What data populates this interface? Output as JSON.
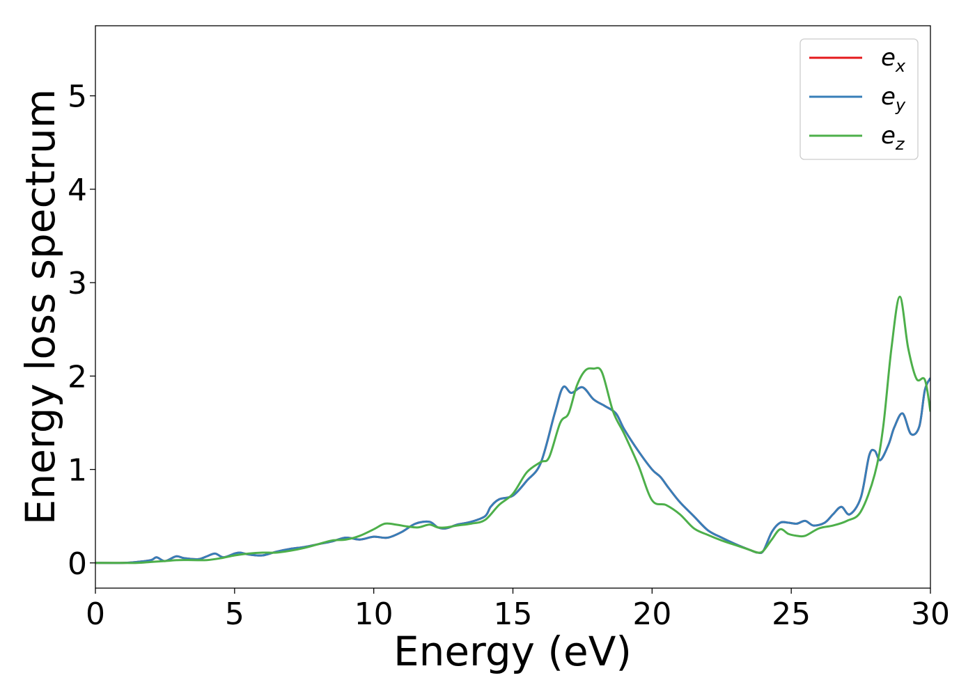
{
  "chart_data": {
    "type": "line",
    "xlabel": "Energy (eV)",
    "ylabel": "Energy loss spectrum",
    "xlim": [
      0,
      30
    ],
    "ylim": [
      -0.27,
      5.75
    ],
    "xticks": [
      0,
      5,
      10,
      15,
      20,
      25,
      30
    ],
    "yticks": [
      0,
      1,
      2,
      3,
      4,
      5
    ],
    "grid": false,
    "legend": "top-right",
    "series": [
      {
        "name": "e_x",
        "label_base": "e",
        "label_sub": "x",
        "color": "#e41a1c",
        "x": [
          0,
          1,
          1.5,
          2,
          2.2,
          2.5,
          2.9,
          3.2,
          3.7,
          4,
          4.3,
          4.6,
          5,
          5.2,
          5.5,
          6,
          6.5,
          7,
          7.5,
          8,
          8.5,
          9,
          9.5,
          10,
          10.5,
          11,
          11.5,
          12,
          12.3,
          12.6,
          13,
          13.5,
          14,
          14.2,
          14.5,
          15,
          15.5,
          16,
          16.5,
          16.8,
          17.1,
          17.5,
          17.9,
          18.3,
          18.7,
          19,
          19.5,
          20,
          20.3,
          20.6,
          21,
          21.5,
          22,
          22.5,
          23,
          23.5,
          23.8,
          24,
          24.3,
          24.6,
          24.9,
          25.2,
          25.5,
          25.8,
          26.2,
          26.5,
          26.8,
          27.1,
          27.5,
          27.8,
          28,
          28.2,
          28.5,
          28.7,
          29,
          29.3,
          29.6,
          29.8,
          30
        ],
        "y": [
          0,
          0,
          0.01,
          0.03,
          0.06,
          0.02,
          0.07,
          0.05,
          0.04,
          0.07,
          0.1,
          0.06,
          0.1,
          0.11,
          0.09,
          0.08,
          0.12,
          0.15,
          0.17,
          0.2,
          0.23,
          0.27,
          0.25,
          0.28,
          0.27,
          0.33,
          0.42,
          0.44,
          0.38,
          0.37,
          0.41,
          0.44,
          0.5,
          0.6,
          0.68,
          0.72,
          0.88,
          1.07,
          1.6,
          1.88,
          1.82,
          1.88,
          1.75,
          1.68,
          1.6,
          1.43,
          1.2,
          1.0,
          0.92,
          0.8,
          0.65,
          0.5,
          0.35,
          0.27,
          0.2,
          0.14,
          0.11,
          0.13,
          0.33,
          0.43,
          0.43,
          0.42,
          0.45,
          0.4,
          0.43,
          0.52,
          0.6,
          0.52,
          0.7,
          1.15,
          1.2,
          1.1,
          1.27,
          1.45,
          1.6,
          1.38,
          1.46,
          1.85,
          1.98
        ]
      },
      {
        "name": "e_y",
        "label_base": "e",
        "label_sub": "y",
        "color": "#377eb8",
        "x": [
          0,
          1,
          1.5,
          2,
          2.2,
          2.5,
          2.9,
          3.2,
          3.7,
          4,
          4.3,
          4.6,
          5,
          5.2,
          5.5,
          6,
          6.5,
          7,
          7.5,
          8,
          8.5,
          9,
          9.5,
          10,
          10.5,
          11,
          11.5,
          12,
          12.3,
          12.6,
          13,
          13.5,
          14,
          14.2,
          14.5,
          15,
          15.5,
          16,
          16.5,
          16.8,
          17.1,
          17.5,
          17.9,
          18.3,
          18.7,
          19,
          19.5,
          20,
          20.3,
          20.6,
          21,
          21.5,
          22,
          22.5,
          23,
          23.5,
          23.8,
          24,
          24.3,
          24.6,
          24.9,
          25.2,
          25.5,
          25.8,
          26.2,
          26.5,
          26.8,
          27.1,
          27.5,
          27.8,
          28,
          28.2,
          28.5,
          28.7,
          29,
          29.3,
          29.6,
          29.8,
          30
        ],
        "y": [
          0,
          0,
          0.01,
          0.03,
          0.06,
          0.02,
          0.07,
          0.05,
          0.04,
          0.07,
          0.1,
          0.06,
          0.1,
          0.11,
          0.09,
          0.08,
          0.12,
          0.15,
          0.17,
          0.2,
          0.23,
          0.27,
          0.25,
          0.28,
          0.27,
          0.33,
          0.42,
          0.44,
          0.38,
          0.37,
          0.41,
          0.44,
          0.5,
          0.6,
          0.68,
          0.72,
          0.88,
          1.07,
          1.6,
          1.88,
          1.82,
          1.88,
          1.75,
          1.68,
          1.6,
          1.43,
          1.2,
          1.0,
          0.92,
          0.8,
          0.65,
          0.5,
          0.35,
          0.27,
          0.2,
          0.14,
          0.11,
          0.13,
          0.33,
          0.43,
          0.43,
          0.42,
          0.45,
          0.4,
          0.43,
          0.52,
          0.6,
          0.52,
          0.7,
          1.15,
          1.2,
          1.1,
          1.27,
          1.45,
          1.6,
          1.38,
          1.46,
          1.85,
          1.98
        ]
      },
      {
        "name": "e_z",
        "label_base": "e",
        "label_sub": "z",
        "color": "#4daf4a",
        "x": [
          0,
          1,
          1.5,
          2,
          2.5,
          3,
          3.5,
          4,
          4.5,
          5,
          5.5,
          6,
          6.5,
          7,
          7.5,
          8,
          8.5,
          9,
          9.5,
          10,
          10.4,
          10.8,
          11.2,
          11.6,
          12,
          12.3,
          12.6,
          13,
          13.5,
          14,
          14.5,
          15,
          15.5,
          16,
          16.3,
          16.7,
          17,
          17.3,
          17.6,
          17.9,
          18.2,
          18.6,
          19,
          19.5,
          20,
          20.5,
          21,
          21.5,
          22,
          22.5,
          23,
          23.5,
          23.8,
          24,
          24.3,
          24.6,
          24.9,
          25.2,
          25.5,
          26,
          26.5,
          27,
          27.5,
          28,
          28.3,
          28.6,
          28.9,
          29.2,
          29.5,
          29.8,
          30
        ],
        "y": [
          0,
          0,
          0,
          0.01,
          0.02,
          0.03,
          0.03,
          0.03,
          0.05,
          0.08,
          0.1,
          0.11,
          0.11,
          0.13,
          0.16,
          0.2,
          0.24,
          0.25,
          0.29,
          0.36,
          0.42,
          0.41,
          0.39,
          0.38,
          0.41,
          0.38,
          0.38,
          0.4,
          0.42,
          0.46,
          0.62,
          0.74,
          0.97,
          1.08,
          1.13,
          1.5,
          1.6,
          1.9,
          2.06,
          2.08,
          2.04,
          1.62,
          1.38,
          1.05,
          0.67,
          0.62,
          0.52,
          0.37,
          0.3,
          0.24,
          0.19,
          0.14,
          0.11,
          0.13,
          0.25,
          0.36,
          0.31,
          0.29,
          0.29,
          0.37,
          0.4,
          0.45,
          0.55,
          0.95,
          1.45,
          2.3,
          2.85,
          2.3,
          1.97,
          1.96,
          1.62
        ]
      }
    ]
  }
}
